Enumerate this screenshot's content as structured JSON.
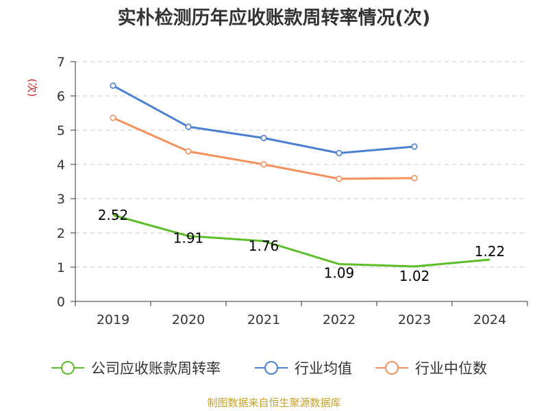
{
  "title": "实朴检测历年应收账款周转率情况(次)",
  "source": "制图数据来自恒生聚源数据库",
  "colors": {
    "company": "#5bbd28",
    "industry_avg": "#4a7fd4",
    "industry_median": "#f58f5b",
    "ylabel": "#e02020",
    "source": "#c8a02c"
  },
  "chart_data": {
    "type": "line",
    "title": "实朴检测历年应收账款周转率情况(次)",
    "ylabel": "(次)",
    "xlabel": "",
    "categories": [
      "2019",
      "2020",
      "2021",
      "2022",
      "2023",
      "2024"
    ],
    "ylim": [
      0,
      7
    ],
    "yticks": [
      0,
      1,
      2,
      3,
      4,
      5,
      6,
      7
    ],
    "grid": true,
    "legend_position": "bottom",
    "series": [
      {
        "name": "公司应收账款周转率",
        "color": "#5bbd28",
        "values": [
          2.52,
          1.91,
          1.76,
          1.09,
          1.02,
          1.22
        ],
        "labels": [
          "2.52",
          "1.91",
          "1.76",
          "1.09",
          "1.02",
          "1.22"
        ],
        "markers": false
      },
      {
        "name": "行业均值",
        "color": "#4a7fd4",
        "values": [
          6.3,
          5.1,
          4.77,
          4.33,
          4.52,
          null
        ],
        "markers": true
      },
      {
        "name": "行业中位数",
        "color": "#f58f5b",
        "values": [
          5.36,
          4.38,
          4.0,
          3.58,
          3.6,
          null
        ],
        "markers": true
      }
    ]
  }
}
